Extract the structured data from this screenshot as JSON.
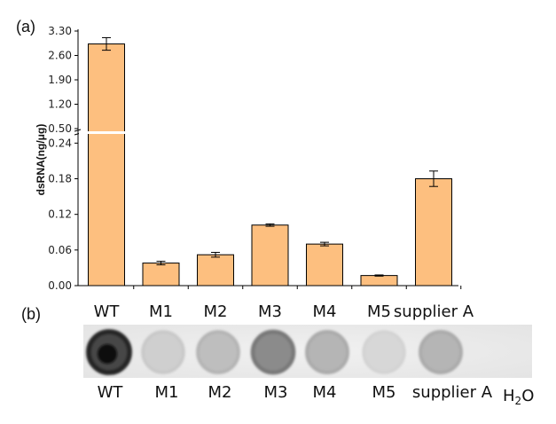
{
  "panel_a_label": "(a)",
  "panel_b_label": "(b)",
  "chart_data": {
    "type": "bar",
    "ylabel": "dsRNA(ng/μg)",
    "categories": [
      "WT",
      "M1",
      "M2",
      "M3",
      "M4",
      "M5",
      "supplier A"
    ],
    "values": [
      2.93,
      0.038,
      0.052,
      0.102,
      0.07,
      0.017,
      0.18
    ],
    "errors": [
      0.18,
      0.003,
      0.004,
      0.002,
      0.003,
      0.001,
      0.013
    ],
    "bar_color": "#FDBF7F",
    "axis_break": true,
    "lower_segment": {
      "ylim": [
        0,
        0.245
      ],
      "ticks": [
        "0.00",
        "0.06",
        "0.12",
        "0.18",
        "0.24"
      ]
    },
    "upper_segment": {
      "ylim": [
        0.5,
        3.3
      ],
      "ticks": [
        "0.50",
        "1.20",
        "1.90",
        "2.60",
        "3.30"
      ]
    }
  },
  "blot": {
    "lane_labels": [
      "WT",
      "M1",
      "M2",
      "M3",
      "M4",
      "M5",
      "supplier A"
    ],
    "water_label_main": "H",
    "water_label_sub": "2",
    "water_label_end": "O",
    "dot_intensity": [
      0.95,
      0.15,
      0.25,
      0.55,
      0.3,
      0.1,
      0.3,
      0.0
    ]
  }
}
